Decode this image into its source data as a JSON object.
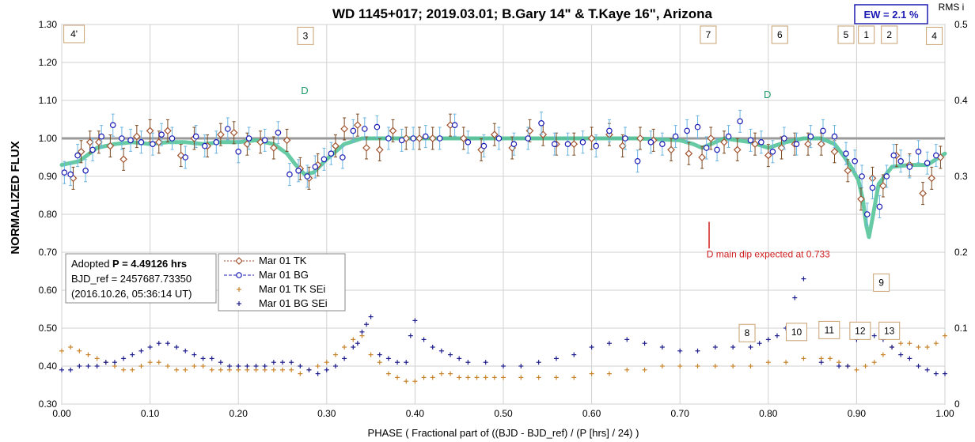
{
  "chart_data": {
    "type": "scatter",
    "title": "WD 1145+017; 2019.03.01; B.Gary 14\" & T.Kaye 16\", Arizona",
    "xlabel": "PHASE ( Fractional part of ((BJD - BJD_ref) / (P [hrs] / 24) )",
    "ylabel": "NORMALIZED FLUX",
    "right_label": "RMS i",
    "xlim": [
      0.0,
      1.0
    ],
    "ylim": [
      0.3,
      1.3
    ],
    "y2lim": [
      0.0,
      0.5
    ],
    "x_ticks": [
      "0.00",
      "0.10",
      "0.20",
      "0.30",
      "0.40",
      "0.50",
      "0.60",
      "0.70",
      "0.80",
      "0.90",
      "1.00"
    ],
    "y_ticks": [
      "0.30",
      "0.40",
      "0.50",
      "0.60",
      "0.70",
      "0.80",
      "0.90",
      "1.00",
      "1.10",
      "1.20",
      "1.30"
    ],
    "y2_ticks": [
      "0",
      "0.1",
      "0.2",
      "0.3",
      "0.4",
      "0.5"
    ],
    "ew_label": "EW =  2.1 %",
    "info": {
      "line1_prefix": "Adopted ",
      "line1_bold": "P = 4.49126 hrs",
      "line2": "BJD_ref = 2457687.73350",
      "line3": "(2016.10.26, 05:36:14 UT)"
    },
    "legend": [
      {
        "name": "Mar 01 TK",
        "color": "#a0522d",
        "marker": "diamond"
      },
      {
        "name": "Mar 01 BG",
        "color": "#1a1ab4",
        "marker": "circle"
      },
      {
        "name": "Mar 01 TK SEi",
        "color": "#c8842c",
        "marker": "plus"
      },
      {
        "name": "Mar 01 BG SEi",
        "color": "#1e1e8c",
        "marker": "plus"
      }
    ],
    "dip_labels": [
      {
        "text": "4'",
        "x": 0.014,
        "y": 1.275
      },
      {
        "text": "3",
        "x": 0.276,
        "y": 1.27
      },
      {
        "text": "7",
        "x": 0.732,
        "y": 1.273
      },
      {
        "text": "6",
        "x": 0.813,
        "y": 1.273
      },
      {
        "text": "5",
        "x": 0.888,
        "y": 1.273
      },
      {
        "text": "1",
        "x": 0.911,
        "y": 1.273
      },
      {
        "text": "2",
        "x": 0.937,
        "y": 1.273
      },
      {
        "text": "4",
        "x": 0.988,
        "y": 1.27
      },
      {
        "text": "9",
        "x": 0.928,
        "y": 0.62
      },
      {
        "text": "8",
        "x": 0.776,
        "y": 0.487
      },
      {
        "text": "10",
        "x": 0.832,
        "y": 0.49
      },
      {
        "text": "11",
        "x": 0.869,
        "y": 0.495
      },
      {
        "text": "12",
        "x": 0.904,
        "y": 0.493
      },
      {
        "text": "13",
        "x": 0.937,
        "y": 0.493
      }
    ],
    "d_labels": [
      {
        "text": "D",
        "x": 0.275,
        "y": 1.125
      },
      {
        "text": "D",
        "x": 0.799,
        "y": 1.115
      }
    ],
    "expected_marker": {
      "x": 0.733,
      "y_from": 0.71,
      "y_to": 0.78
    },
    "expected_text": {
      "text": "D main dip expected at 0.733",
      "x": 0.8,
      "y": 0.695
    },
    "reference_line": 1.0,
    "model_curve": {
      "x": [
        0.0,
        0.02,
        0.04,
        0.06,
        0.08,
        0.1,
        0.12,
        0.14,
        0.16,
        0.18,
        0.2,
        0.22,
        0.24,
        0.255,
        0.265,
        0.275,
        0.285,
        0.3,
        0.32,
        0.34,
        0.4,
        0.5,
        0.6,
        0.65,
        0.7,
        0.715,
        0.725,
        0.735,
        0.75,
        0.78,
        0.8,
        0.82,
        0.84,
        0.86,
        0.875,
        0.885,
        0.895,
        0.902,
        0.907,
        0.911,
        0.914,
        0.918,
        0.925,
        0.94,
        0.96,
        0.98,
        1.0
      ],
      "y": [
        0.93,
        0.94,
        0.975,
        0.985,
        0.99,
        0.985,
        0.99,
        0.99,
        0.985,
        0.99,
        0.99,
        0.995,
        0.985,
        0.96,
        0.93,
        0.905,
        0.91,
        0.945,
        0.985,
        1.0,
        1.0,
        1.0,
        1.0,
        1.0,
        0.995,
        0.985,
        0.975,
        0.985,
        1.0,
        0.99,
        0.975,
        0.99,
        1.0,
        1.0,
        0.985,
        0.955,
        0.92,
        0.89,
        0.84,
        0.77,
        0.74,
        0.79,
        0.88,
        0.925,
        0.93,
        0.93,
        0.96
      ]
    },
    "series": [
      {
        "name": "Mar 01 TK",
        "type": "diamond",
        "x": [
          0.013,
          0.022,
          0.032,
          0.042,
          0.055,
          0.07,
          0.085,
          0.1,
          0.11,
          0.12,
          0.135,
          0.15,
          0.165,
          0.18,
          0.195,
          0.21,
          0.225,
          0.24,
          0.255,
          0.27,
          0.28,
          0.29,
          0.31,
          0.32,
          0.335,
          0.345,
          0.36,
          0.375,
          0.39,
          0.405,
          0.42,
          0.44,
          0.455,
          0.475,
          0.49,
          0.51,
          0.53,
          0.545,
          0.56,
          0.58,
          0.6,
          0.62,
          0.635,
          0.655,
          0.67,
          0.69,
          0.71,
          0.725,
          0.735,
          0.75,
          0.765,
          0.785,
          0.8,
          0.815,
          0.83,
          0.845,
          0.86,
          0.875,
          0.89,
          0.905,
          0.918,
          0.93,
          0.945,
          0.96,
          0.975,
          0.985,
          0.995
        ],
        "y": [
          0.895,
          0.965,
          0.99,
          0.99,
          0.98,
          0.945,
          1.005,
          1.02,
          0.99,
          1.02,
          0.955,
          1.0,
          0.98,
          1.01,
          1.015,
          0.985,
          0.99,
          0.975,
          0.995,
          0.92,
          0.895,
          0.93,
          0.98,
          1.025,
          1.035,
          0.975,
          0.97,
          1.02,
          1.0,
          1.0,
          1.0,
          1.035,
          1.0,
          0.97,
          1.01,
          0.975,
          1.02,
          1.01,
          0.985,
          0.985,
          1.0,
          1.01,
          0.98,
          1.0,
          0.995,
          0.97,
          0.96,
          0.95,
          1.0,
          0.99,
          0.97,
          0.985,
          0.955,
          0.975,
          0.985,
          0.985,
          0.985,
          0.965,
          0.915,
          0.84,
          0.895,
          0.875,
          0.955,
          0.93,
          0.855,
          0.895,
          0.95
        ]
      },
      {
        "name": "Mar 01 BG",
        "type": "circle",
        "x": [
          0.003,
          0.01,
          0.018,
          0.027,
          0.035,
          0.045,
          0.058,
          0.068,
          0.078,
          0.09,
          0.103,
          0.113,
          0.125,
          0.14,
          0.152,
          0.162,
          0.175,
          0.188,
          0.2,
          0.212,
          0.23,
          0.245,
          0.258,
          0.268,
          0.278,
          0.287,
          0.297,
          0.305,
          0.318,
          0.33,
          0.343,
          0.357,
          0.37,
          0.385,
          0.398,
          0.412,
          0.428,
          0.445,
          0.46,
          0.478,
          0.495,
          0.512,
          0.528,
          0.543,
          0.558,
          0.573,
          0.59,
          0.605,
          0.62,
          0.638,
          0.652,
          0.667,
          0.68,
          0.695,
          0.708,
          0.72,
          0.73,
          0.742,
          0.755,
          0.768,
          0.78,
          0.792,
          0.805,
          0.818,
          0.832,
          0.848,
          0.862,
          0.875,
          0.888,
          0.898,
          0.906,
          0.912,
          0.918,
          0.926,
          0.934,
          0.942,
          0.95,
          0.96,
          0.97,
          0.98,
          0.99
        ],
        "y": [
          0.91,
          0.905,
          0.955,
          0.915,
          0.97,
          1.005,
          1.035,
          1.0,
          0.995,
          0.99,
          0.985,
          1.01,
          1.0,
          0.95,
          1.005,
          0.98,
          0.99,
          1.025,
          0.965,
          1.0,
          0.995,
          1.015,
          0.905,
          0.915,
          0.9,
          0.925,
          0.945,
          0.96,
          0.95,
          1.02,
          1.025,
          1.03,
          1.0,
          0.995,
          1.0,
          1.005,
          1.0,
          1.035,
          0.99,
          0.98,
          1.0,
          0.985,
          1.0,
          1.04,
          0.985,
          0.985,
          0.99,
          0.98,
          1.02,
          1.0,
          0.94,
          0.99,
          0.985,
          1.005,
          1.02,
          1.03,
          0.975,
          0.97,
          1.005,
          1.045,
          0.995,
          0.99,
          0.965,
          1.0,
          0.985,
          1.005,
          1.02,
          1.005,
          0.96,
          0.94,
          0.9,
          0.8,
          0.87,
          0.82,
          0.9,
          0.955,
          0.94,
          0.925,
          0.965,
          0.935,
          0.955
        ]
      },
      {
        "name": "Mar 01 TK SEi",
        "type": "plus",
        "x": [
          0.0,
          0.01,
          0.02,
          0.03,
          0.04,
          0.05,
          0.06,
          0.07,
          0.08,
          0.09,
          0.1,
          0.11,
          0.12,
          0.13,
          0.14,
          0.15,
          0.16,
          0.17,
          0.18,
          0.19,
          0.2,
          0.21,
          0.22,
          0.23,
          0.24,
          0.25,
          0.26,
          0.27,
          0.28,
          0.29,
          0.3,
          0.31,
          0.32,
          0.33,
          0.34,
          0.35,
          0.36,
          0.37,
          0.38,
          0.39,
          0.4,
          0.41,
          0.42,
          0.43,
          0.44,
          0.45,
          0.46,
          0.47,
          0.48,
          0.49,
          0.5,
          0.52,
          0.54,
          0.56,
          0.58,
          0.6,
          0.62,
          0.64,
          0.66,
          0.68,
          0.7,
          0.72,
          0.74,
          0.76,
          0.78,
          0.8,
          0.82,
          0.84,
          0.86,
          0.87,
          0.88,
          0.89,
          0.9,
          0.91,
          0.92,
          0.93,
          0.94,
          0.95,
          0.96,
          0.97,
          0.98,
          0.99,
          1.0
        ],
        "y2": [
          0.07,
          0.075,
          0.07,
          0.065,
          0.06,
          0.055,
          0.05,
          0.045,
          0.045,
          0.05,
          0.055,
          0.055,
          0.05,
          0.045,
          0.045,
          0.05,
          0.05,
          0.045,
          0.045,
          0.045,
          0.045,
          0.045,
          0.045,
          0.045,
          0.045,
          0.045,
          0.045,
          0.04,
          0.045,
          0.05,
          0.055,
          0.065,
          0.075,
          0.085,
          0.09,
          0.065,
          0.055,
          0.04,
          0.035,
          0.03,
          0.03,
          0.035,
          0.035,
          0.04,
          0.04,
          0.035,
          0.035,
          0.035,
          0.035,
          0.035,
          0.035,
          0.035,
          0.035,
          0.035,
          0.035,
          0.04,
          0.04,
          0.045,
          0.045,
          0.05,
          0.05,
          0.05,
          0.05,
          0.05,
          0.05,
          0.055,
          0.055,
          0.06,
          0.06,
          0.06,
          0.055,
          0.05,
          0.045,
          0.05,
          0.055,
          0.065,
          0.075,
          0.08,
          0.08,
          0.075,
          0.075,
          0.08,
          0.09
        ]
      },
      {
        "name": "Mar 01 BG SEi",
        "type": "plus",
        "x": [
          0.0,
          0.01,
          0.02,
          0.03,
          0.04,
          0.05,
          0.06,
          0.07,
          0.08,
          0.09,
          0.1,
          0.11,
          0.12,
          0.13,
          0.14,
          0.15,
          0.16,
          0.17,
          0.18,
          0.19,
          0.2,
          0.21,
          0.22,
          0.23,
          0.24,
          0.25,
          0.26,
          0.27,
          0.28,
          0.29,
          0.3,
          0.31,
          0.32,
          0.33,
          0.335,
          0.34,
          0.345,
          0.35,
          0.36,
          0.37,
          0.38,
          0.39,
          0.395,
          0.4,
          0.41,
          0.42,
          0.43,
          0.44,
          0.45,
          0.46,
          0.48,
          0.5,
          0.52,
          0.54,
          0.56,
          0.58,
          0.6,
          0.62,
          0.64,
          0.66,
          0.68,
          0.7,
          0.72,
          0.74,
          0.76,
          0.78,
          0.79,
          0.8,
          0.81,
          0.82,
          0.83,
          0.84,
          0.86,
          0.88,
          0.89,
          0.9,
          0.91,
          0.92,
          0.93,
          0.94,
          0.95,
          0.96,
          0.97,
          0.98,
          0.99,
          1.0
        ],
        "y2": [
          0.045,
          0.045,
          0.05,
          0.05,
          0.05,
          0.055,
          0.055,
          0.06,
          0.065,
          0.07,
          0.075,
          0.08,
          0.08,
          0.075,
          0.07,
          0.065,
          0.06,
          0.06,
          0.055,
          0.05,
          0.05,
          0.05,
          0.05,
          0.05,
          0.055,
          0.055,
          0.055,
          0.05,
          0.045,
          0.04,
          0.045,
          0.05,
          0.06,
          0.075,
          0.08,
          0.095,
          0.105,
          0.115,
          0.065,
          0.06,
          0.055,
          0.055,
          0.09,
          0.11,
          0.085,
          0.075,
          0.07,
          0.065,
          0.06,
          0.055,
          0.055,
          0.05,
          0.05,
          0.055,
          0.06,
          0.065,
          0.075,
          0.08,
          0.085,
          0.08,
          0.075,
          0.07,
          0.07,
          0.075,
          0.075,
          0.075,
          0.08,
          0.085,
          0.09,
          0.1,
          0.14,
          0.165,
          0.055,
          0.05,
          0.05,
          0.085,
          0.095,
          0.09,
          0.085,
          0.075,
          0.065,
          0.06,
          0.05,
          0.045,
          0.04,
          0.04
        ]
      }
    ]
  }
}
